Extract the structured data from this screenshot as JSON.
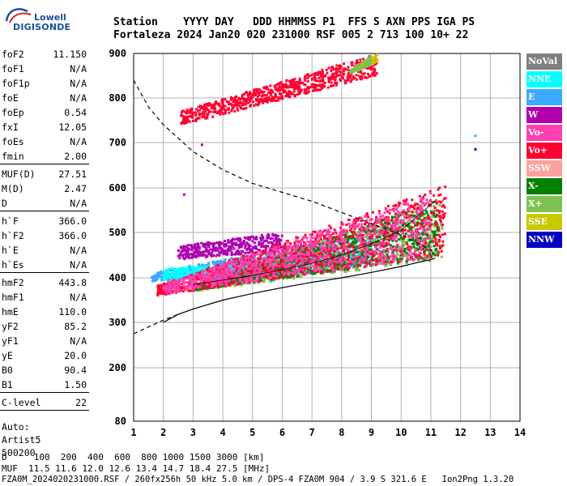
{
  "logo": {
    "top": "Lowell",
    "bottom": "DIGISONDE"
  },
  "header": {
    "line1": "Station    YYYY DAY   DDD HHMMSS P1  FFS S AXN PPS IGA PS",
    "line2": "Fortaleza 2024 Jan20 020 231000 RSF 005 2 713 100 10+ 22"
  },
  "params": [
    {
      "name": "foF2",
      "value": "11.150"
    },
    {
      "name": "foF1",
      "value": "N/A"
    },
    {
      "name": "foF1p",
      "value": "N/A"
    },
    {
      "name": "foE",
      "value": "N/A"
    },
    {
      "name": "foEp",
      "value": "0.54"
    },
    {
      "name": "fxI",
      "value": "12.05"
    },
    {
      "name": "foEs",
      "value": "N/A"
    },
    {
      "name": "fmin",
      "value": "2.00"
    },
    {
      "name": "MUF(D)",
      "value": "27.51"
    },
    {
      "name": "M(D)",
      "value": "2.47"
    },
    {
      "name": "D",
      "value": "N/A"
    },
    {
      "name": "h`F",
      "value": "366.0"
    },
    {
      "name": "h`F2",
      "value": "366.0"
    },
    {
      "name": "h`E",
      "value": "N/A"
    },
    {
      "name": "h`Es",
      "value": "N/A"
    },
    {
      "name": "hmF2",
      "value": "443.8"
    },
    {
      "name": "hmF1",
      "value": "N/A"
    },
    {
      "name": "hmE",
      "value": "110.0"
    },
    {
      "name": "yF2",
      "value": "85.2"
    },
    {
      "name": "yF1",
      "value": "N/A"
    },
    {
      "name": "yE",
      "value": "20.0"
    },
    {
      "name": "B0",
      "value": "90.4"
    },
    {
      "name": "B1",
      "value": "1.50"
    },
    {
      "name": "C-level",
      "value": "22"
    }
  ],
  "auto": {
    "line1": "Auto:",
    "line2": "Artist5",
    "line3": "500200"
  },
  "legend": [
    {
      "label": "NoVal",
      "color": "#808080"
    },
    {
      "label": "NNE",
      "color": "#00ffff"
    },
    {
      "label": "E",
      "color": "#3da8ff"
    },
    {
      "label": "W",
      "color": "#b000b0"
    },
    {
      "label": "Vo-",
      "color": "#ff40b0"
    },
    {
      "label": "Vo+",
      "color": "#ff0030"
    },
    {
      "label": "SSW",
      "color": "#ffa0a0"
    },
    {
      "label": "X-",
      "color": "#008000"
    },
    {
      "label": "X+",
      "color": "#80c050"
    },
    {
      "label": "SSE",
      "color": "#c8c800"
    },
    {
      "label": "NNW",
      "color": "#0000c0"
    }
  ],
  "footer": {
    "line1": "D     100  200  400  600  800 1000 1500 3000 [km]",
    "line2": "MUF  11.5 11.6 12.0 12.6 13.4 14.7 18.4 27.5 [MHz]",
    "line3": "FZA0M_2024020231000.RSF / 260fx256h 50 kHz 5.0 km / DPS-4 FZA0M 904 / 3.9 S 321.6 E   Ion2Png 1.3.20"
  },
  "chart_data": {
    "type": "scatter",
    "xlim": [
      1,
      14
    ],
    "ylim": [
      80,
      900
    ],
    "x_ticks": [
      1,
      2,
      3,
      4,
      5,
      6,
      7,
      8,
      9,
      10,
      11,
      12,
      13,
      14
    ],
    "y_ticks": [
      80,
      200,
      300,
      400,
      500,
      600,
      700,
      800,
      900
    ],
    "grid": true,
    "traces": [
      {
        "name": "profile",
        "style": "solid",
        "points": [
          [
            2.0,
            300
          ],
          [
            2.5,
            318
          ],
          [
            3.0,
            330
          ],
          [
            3.5,
            340
          ],
          [
            4.0,
            350
          ],
          [
            5.0,
            365
          ],
          [
            6.0,
            378
          ],
          [
            7.0,
            390
          ],
          [
            8.0,
            400
          ],
          [
            9.0,
            412
          ],
          [
            10.0,
            425
          ],
          [
            10.5,
            433
          ],
          [
            11.0,
            440
          ],
          [
            11.15,
            443.8
          ]
        ]
      },
      {
        "name": "upper",
        "style": "dashed",
        "points": [
          [
            1.0,
            840
          ],
          [
            1.5,
            780
          ],
          [
            2.0,
            740
          ],
          [
            3.0,
            680
          ],
          [
            4.0,
            640
          ],
          [
            5.0,
            610
          ],
          [
            6.0,
            590
          ],
          [
            7.0,
            570
          ],
          [
            8.0,
            545
          ],
          [
            9.0,
            520
          ],
          [
            10.0,
            495
          ],
          [
            10.5,
            478
          ],
          [
            11.0,
            462
          ],
          [
            11.15,
            455
          ]
        ]
      },
      {
        "name": "lower",
        "style": "dashed",
        "points": [
          [
            1.0,
            275
          ],
          [
            1.5,
            290
          ],
          [
            2.0,
            305
          ],
          [
            2.5,
            318
          ]
        ]
      },
      {
        "name": "trace",
        "style": "solid-thin",
        "points": [
          [
            3.0,
            385
          ],
          [
            4.0,
            395
          ],
          [
            5.0,
            405
          ],
          [
            6.0,
            418
          ],
          [
            7.0,
            432
          ],
          [
            8.0,
            450
          ],
          [
            9.0,
            475
          ],
          [
            10.0,
            505
          ],
          [
            10.7,
            545
          ],
          [
            11.2,
            575
          ]
        ]
      }
    ],
    "echo_bands": [
      {
        "color": "#3da8ff",
        "x": [
          1.6,
          9.2
        ],
        "h0": [
          392,
          410
        ],
        "h1": [
          430,
          505
        ]
      },
      {
        "color": "#00ffff",
        "x": [
          2.0,
          7.0
        ],
        "h0": [
          395,
          420
        ],
        "h1": [
          410,
          440
        ]
      },
      {
        "color": "#b000b0",
        "x": [
          2.5,
          6.0
        ],
        "h0": [
          440,
          470
        ],
        "h1": [
          460,
          500
        ]
      },
      {
        "color": "#80c050",
        "x": [
          3.0,
          11.4
        ],
        "h0": [
          370,
          380
        ],
        "h1": [
          440,
          580
        ]
      },
      {
        "color": "#008000",
        "x": [
          3.0,
          11.3
        ],
        "h0": [
          372,
          378
        ],
        "h1": [
          445,
          575
        ]
      },
      {
        "color": "#ff0030",
        "x": [
          1.8,
          11.5
        ],
        "h0": [
          360,
          382
        ],
        "h1": [
          450,
          605
        ]
      },
      {
        "color": "#ff40b0",
        "x": [
          2.0,
          11.0
        ],
        "h0": [
          365,
          385
        ],
        "h1": [
          445,
          590
        ]
      },
      {
        "color": "#ff0030",
        "x": [
          2.6,
          9.2
        ],
        "h0": [
          740,
          770
        ],
        "h1": [
          850,
          900
        ]
      },
      {
        "color": "#c8c800",
        "x": [
          8.5,
          9.2
        ],
        "h0": [
          860,
          870
        ],
        "h1": [
          880,
          900
        ]
      },
      {
        "color": "#80c050",
        "x": [
          8.3,
          9.0
        ],
        "h0": [
          855,
          862
        ],
        "h1": [
          875,
          895
        ]
      }
    ],
    "isolated_points": [
      {
        "x": 12.5,
        "y": 715,
        "color": "#3da8ff"
      },
      {
        "x": 12.5,
        "y": 685,
        "color": "#0000c0"
      },
      {
        "x": 3.3,
        "y": 695,
        "color": "#b000b0"
      },
      {
        "x": 2.7,
        "y": 585,
        "color": "#b000b0"
      }
    ]
  }
}
